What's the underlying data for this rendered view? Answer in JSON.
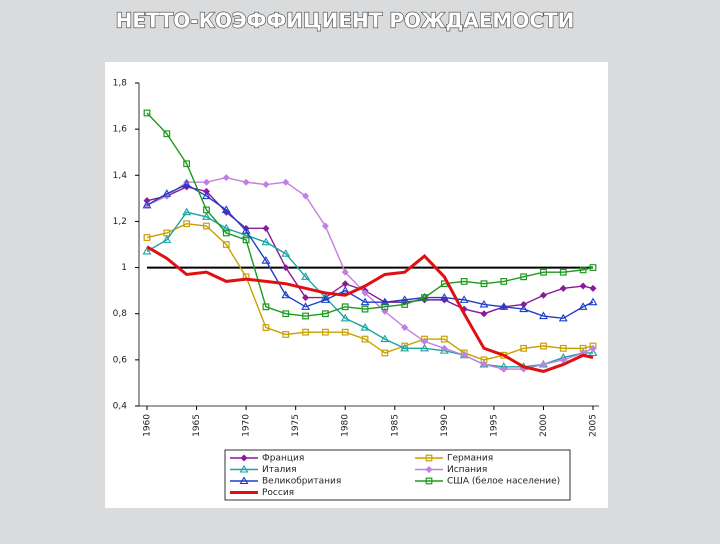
{
  "chart_data": {
    "type": "line",
    "title": "НЕТТО-КОЭФФИЦИЕНТ РОЖДАЕМОСТИ",
    "x": [
      1960,
      1962,
      1964,
      1966,
      1968,
      1970,
      1972,
      1974,
      1976,
      1978,
      1980,
      1982,
      1984,
      1986,
      1988,
      1990,
      1992,
      1994,
      1996,
      1998,
      2000,
      2002,
      2004,
      2005
    ],
    "xlim": [
      1960,
      2005
    ],
    "xticks": [
      1960,
      1965,
      1970,
      1975,
      1980,
      1985,
      1990,
      1995,
      2000,
      2005
    ],
    "ylim": [
      0.4,
      1.8
    ],
    "yticks": [
      {
        "value": 0.4,
        "label": "0,4"
      },
      {
        "value": 0.6,
        "label": "0,6"
      },
      {
        "value": 0.8,
        "label": "0,8"
      },
      1,
      {
        "value": 1.2,
        "label": "1,2"
      },
      {
        "value": 1.4,
        "label": "1,4"
      },
      {
        "value": 1.6,
        "label": "1,6"
      },
      {
        "value": 1.8,
        "label": "1,8"
      }
    ],
    "reference_line": 1,
    "series": [
      {
        "name": "Франция",
        "color": "#8b1a9a",
        "marker": "diamond",
        "values": [
          1.29,
          1.31,
          1.35,
          1.33,
          1.24,
          1.17,
          1.17,
          1.0,
          0.87,
          0.87,
          0.93,
          0.9,
          0.85,
          0.85,
          0.86,
          0.86,
          0.82,
          0.8,
          0.83,
          0.84,
          0.88,
          0.91,
          0.92,
          0.91
        ]
      },
      {
        "name": "Германия",
        "color": "#c8a000",
        "marker": "square",
        "values": [
          1.13,
          1.15,
          1.19,
          1.18,
          1.1,
          0.96,
          0.74,
          0.71,
          0.72,
          0.72,
          0.72,
          0.69,
          0.63,
          0.66,
          0.69,
          0.69,
          0.63,
          0.6,
          0.62,
          0.65,
          0.66,
          0.65,
          0.65,
          0.66
        ]
      },
      {
        "name": "Италия",
        "color": "#1aa3a3",
        "marker": "triangle",
        "values": [
          1.07,
          1.12,
          1.24,
          1.22,
          1.17,
          1.14,
          1.11,
          1.06,
          0.96,
          0.87,
          0.78,
          0.74,
          0.69,
          0.65,
          0.65,
          0.64,
          0.62,
          0.58,
          0.57,
          0.57,
          0.58,
          0.61,
          0.63,
          0.63
        ]
      },
      {
        "name": "Испания",
        "color": "#c080e0",
        "marker": "diamond",
        "values": [
          1.27,
          1.31,
          1.37,
          1.37,
          1.39,
          1.37,
          1.36,
          1.37,
          1.31,
          1.18,
          0.98,
          0.89,
          0.81,
          0.74,
          0.68,
          0.65,
          0.62,
          0.58,
          0.56,
          0.56,
          0.58,
          0.6,
          0.63,
          0.65
        ]
      },
      {
        "name": "Великобритания",
        "color": "#1f3fc8",
        "marker": "triangle",
        "values": [
          1.27,
          1.32,
          1.36,
          1.31,
          1.25,
          1.16,
          1.03,
          0.88,
          0.83,
          0.86,
          0.9,
          0.85,
          0.85,
          0.86,
          0.87,
          0.87,
          0.86,
          0.84,
          0.83,
          0.82,
          0.79,
          0.78,
          0.83,
          0.85
        ]
      },
      {
        "name": "США (белое население)",
        "color": "#1e9a1e",
        "marker": "square",
        "values": [
          1.67,
          1.58,
          1.45,
          1.25,
          1.15,
          1.12,
          0.83,
          0.8,
          0.79,
          0.8,
          0.83,
          0.82,
          0.83,
          0.84,
          0.87,
          0.93,
          0.94,
          0.93,
          0.94,
          0.96,
          0.98,
          0.98,
          0.99,
          1.0
        ]
      },
      {
        "name": "Россия",
        "color": "#e01010",
        "marker": "none",
        "values": [
          1.09,
          1.04,
          0.97,
          0.98,
          0.94,
          0.95,
          0.94,
          0.93,
          0.91,
          0.89,
          0.88,
          0.92,
          0.97,
          0.98,
          1.05,
          0.96,
          0.8,
          0.65,
          0.62,
          0.57,
          0.55,
          0.58,
          0.62,
          0.61
        ]
      }
    ]
  }
}
